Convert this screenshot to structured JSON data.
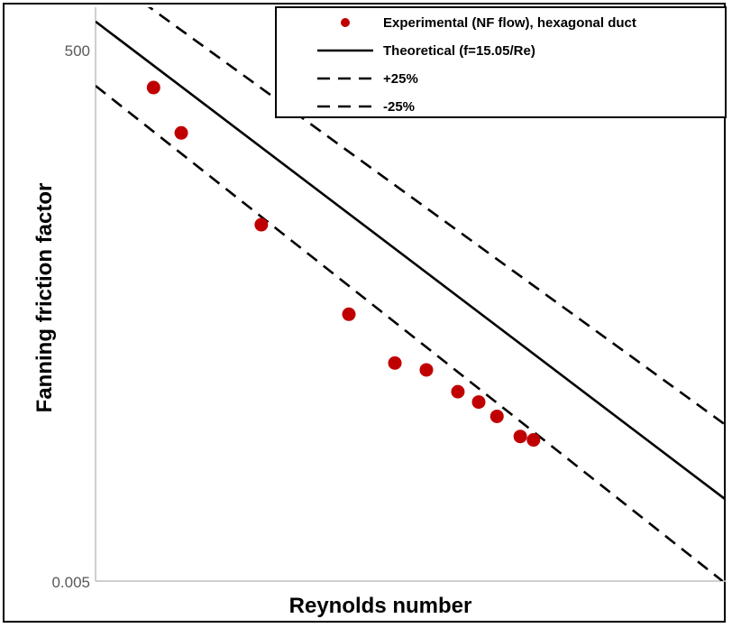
{
  "chart_data": {
    "type": "scatter",
    "title": "",
    "xlabel": "Reynolds number",
    "ylabel": "Fanning friction factor",
    "y_scale": "log",
    "x_scale": "log",
    "y_ticks": [
      "500",
      "0.005"
    ],
    "ylim": [
      0.005,
      500
    ],
    "grid": false,
    "legend_position": "top-right",
    "colors": {
      "experimental": "#C00000",
      "lines": "#000000",
      "axis": "#BFBFBF"
    },
    "series": [
      {
        "name": "Experimental (NF flow), hexagonal duct",
        "kind": "points",
        "points": [
          {
            "x": 0.092,
            "y": 0.86
          },
          {
            "x": 0.136,
            "y": 0.781
          },
          {
            "x": 0.263,
            "y": 0.621
          },
          {
            "x": 0.402,
            "y": 0.465
          },
          {
            "x": 0.475,
            "y": 0.38
          },
          {
            "x": 0.525,
            "y": 0.368
          },
          {
            "x": 0.575,
            "y": 0.33
          },
          {
            "x": 0.608,
            "y": 0.312
          },
          {
            "x": 0.637,
            "y": 0.287
          },
          {
            "x": 0.674,
            "y": 0.252
          },
          {
            "x": 0.695,
            "y": 0.246
          }
        ]
      },
      {
        "name": "Theoretical (f=15.05/Re)",
        "kind": "line",
        "dash": "solid",
        "points": [
          {
            "x": 0.0,
            "y": 0.975
          },
          {
            "x": 1.0,
            "y": 0.142
          }
        ]
      },
      {
        "name": "+25%",
        "kind": "line",
        "dash": "dashed",
        "points": [
          {
            "x": 0.048,
            "y": 1.03
          },
          {
            "x": 1.0,
            "y": 0.272
          }
        ]
      },
      {
        "name": "-25%",
        "kind": "line",
        "dash": "dashed",
        "points": [
          {
            "x": 0.0,
            "y": 0.863
          },
          {
            "x": 0.995,
            "y": 0.0
          }
        ]
      }
    ]
  }
}
